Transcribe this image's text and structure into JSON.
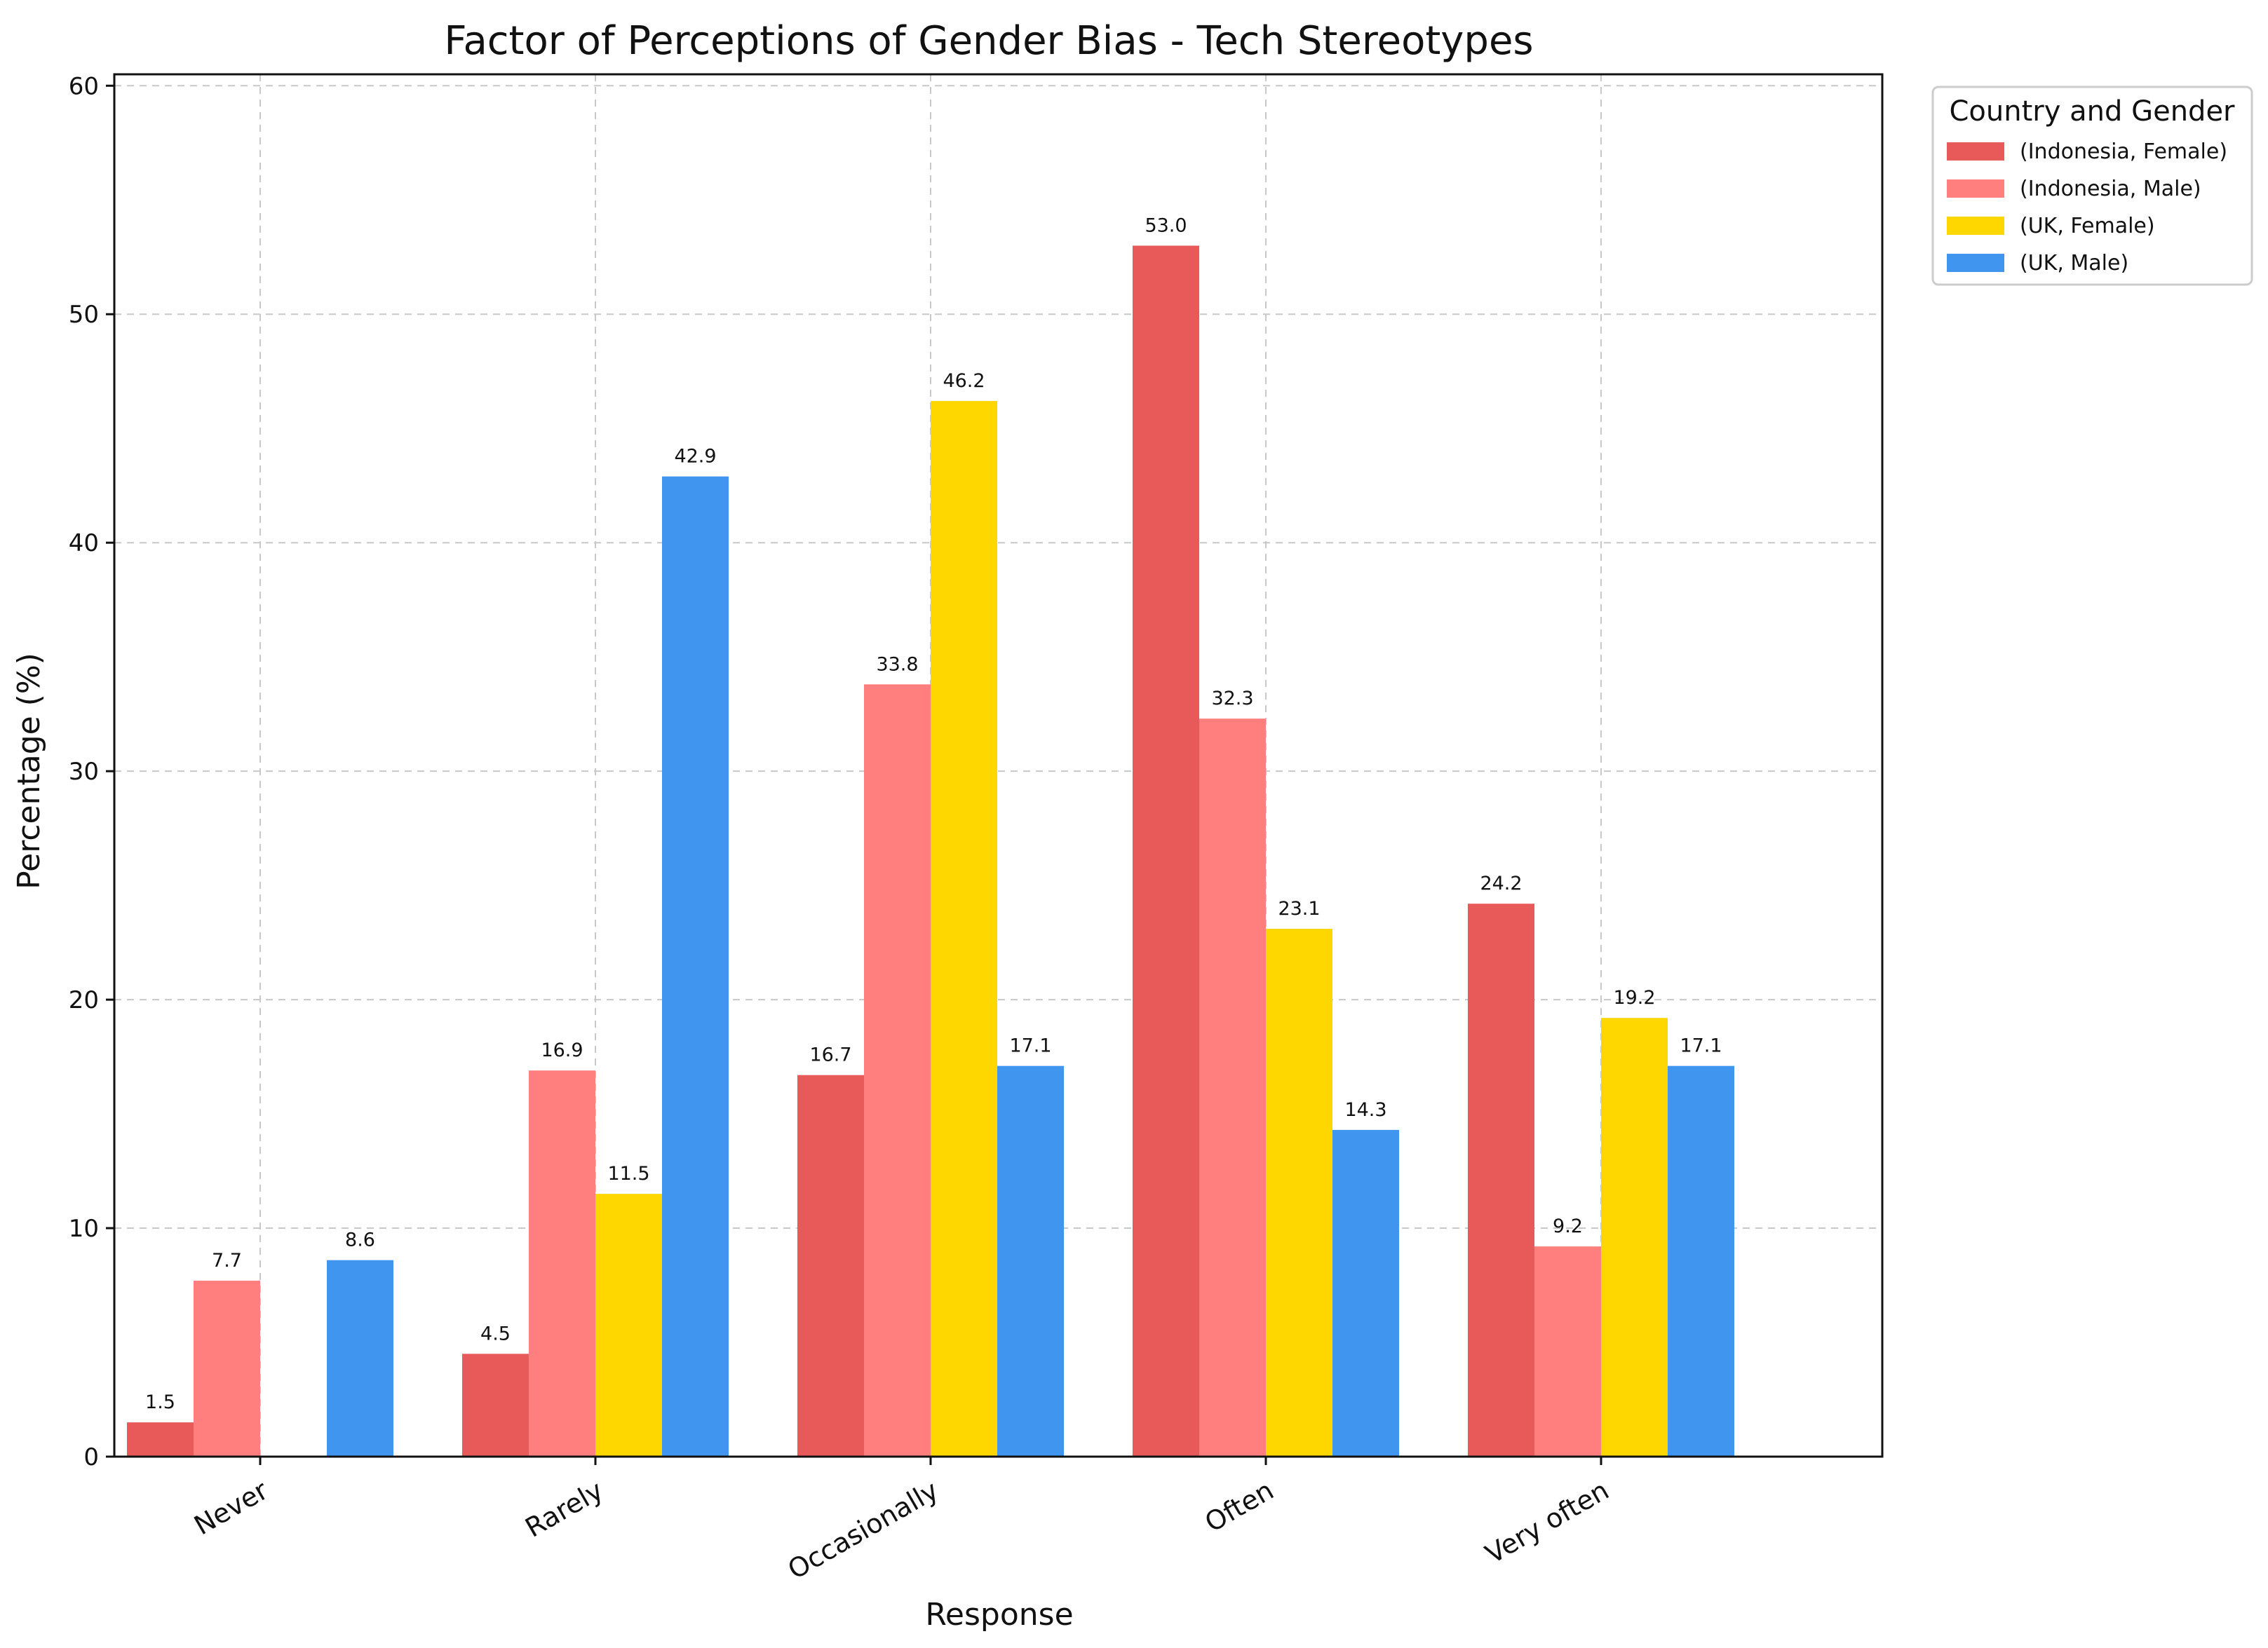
{
  "chart_data": {
    "type": "bar",
    "title": "Factor of Perceptions of Gender Bias - Tech Stereotypes",
    "xlabel": "Response",
    "ylabel": "Percentage (%)",
    "ylim": [
      0,
      60.5
    ],
    "yticks": [
      0,
      10,
      20,
      30,
      40,
      50,
      60
    ],
    "grid": true,
    "categories": [
      "Never",
      "Rarely",
      "Occasionally",
      "Often",
      "Very often"
    ],
    "legend": {
      "title": "Country and Gender",
      "placement": "outside-top-right"
    },
    "series": [
      {
        "name": "(Indonesia, Female)",
        "color": "#e85a5a",
        "values": [
          1.5,
          4.5,
          16.7,
          53.0,
          24.2
        ]
      },
      {
        "name": "(Indonesia, Male)",
        "color": "#ff7f7f",
        "values": [
          7.7,
          16.9,
          33.8,
          32.3,
          9.2
        ]
      },
      {
        "name": "(UK, Female)",
        "color": "#ffd700",
        "values": [
          null,
          11.5,
          46.2,
          23.1,
          19.2
        ]
      },
      {
        "name": "(UK, Male)",
        "color": "#4096ee",
        "values": [
          8.6,
          42.9,
          17.1,
          14.3,
          17.1
        ]
      }
    ]
  }
}
